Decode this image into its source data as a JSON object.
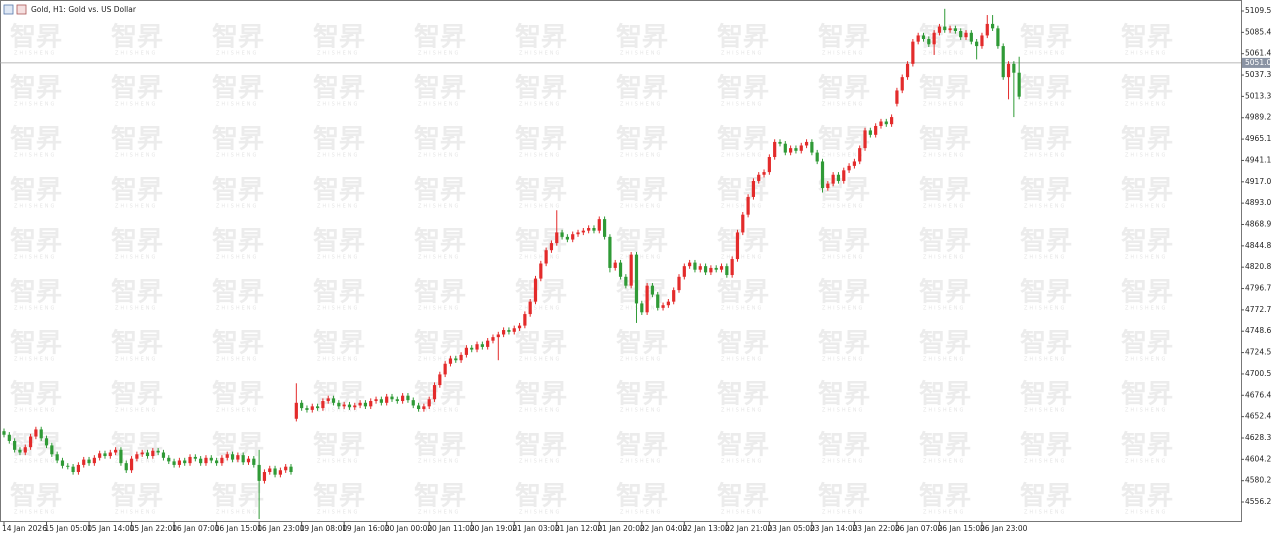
{
  "chart_data": {
    "type": "candlestick",
    "title": "Gold, H1:  Gold vs. US Dollar",
    "watermark": "智昇",
    "watermark_sub": "ZHISHENG",
    "current_price": 5051.05,
    "up_color": "#e32b2b",
    "down_color": "#2f9a36",
    "ylim": [
      4533.67,
      5120.82
    ],
    "yticks": [
      {
        "value": 5109.55,
        "label": "5109.55"
      },
      {
        "value": 5085.49,
        "label": "5085.49"
      },
      {
        "value": 5061.43,
        "label": "5061.43"
      },
      {
        "value": 5037.37,
        "label": "5037.37"
      },
      {
        "value": 5013.31,
        "label": "5013.31"
      },
      {
        "value": 4989.25,
        "label": "4989.25"
      },
      {
        "value": 4965.19,
        "label": "4965.19"
      },
      {
        "value": 4941.13,
        "label": "4941.13"
      },
      {
        "value": 4917.07,
        "label": "4917.07"
      },
      {
        "value": 4893.01,
        "label": "4893.01"
      },
      {
        "value": 4868.95,
        "label": "4868.95"
      },
      {
        "value": 4844.89,
        "label": "4844.89"
      },
      {
        "value": 4820.83,
        "label": "4820.83"
      },
      {
        "value": 4796.77,
        "label": "4796.77"
      },
      {
        "value": 4772.71,
        "label": "4772.71"
      },
      {
        "value": 4748.65,
        "label": "4748.65"
      },
      {
        "value": 4724.59,
        "label": "4724.59"
      },
      {
        "value": 4700.53,
        "label": "4700.53"
      },
      {
        "value": 4676.47,
        "label": "4676.47"
      },
      {
        "value": 4652.41,
        "label": "4652.41"
      },
      {
        "value": 4628.35,
        "label": "4628.35"
      },
      {
        "value": 4604.29,
        "label": "4604.29"
      },
      {
        "value": 4580.23,
        "label": "4580.23"
      },
      {
        "value": 4556.21,
        "label": "4556.21"
      }
    ],
    "categories": [
      "14 Jan 2026",
      null,
      null,
      null,
      null,
      null,
      null,
      null,
      "15 Jan 05:00",
      null,
      null,
      null,
      null,
      null,
      null,
      null,
      "15 Jan 14:00",
      null,
      null,
      null,
      null,
      null,
      null,
      null,
      "15 Jan 22:00",
      null,
      null,
      null,
      null,
      null,
      null,
      null,
      "16 Jan 07:00",
      null,
      null,
      null,
      null,
      null,
      null,
      null,
      "16 Jan 15:00",
      null,
      null,
      null,
      null,
      null,
      null,
      null,
      "16 Jan 23:00",
      null,
      null,
      null,
      null,
      null,
      null,
      null,
      "19 Jan 08:00",
      null,
      null,
      null,
      null,
      null,
      null,
      null,
      "19 Jan 16:00",
      null,
      null,
      null,
      null,
      null,
      null,
      null,
      "20 Jan 00:00",
      null,
      null,
      null,
      null,
      null,
      null,
      null,
      "20 Jan 11:00",
      null,
      null,
      null,
      null,
      null,
      null,
      null,
      "20 Jan 19:00",
      null,
      null,
      null,
      null,
      null,
      null,
      null,
      "21 Jan 03:00",
      null,
      null,
      null,
      null,
      null,
      null,
      null,
      "21 Jan 12:00",
      null,
      null,
      null,
      null,
      null,
      null,
      null,
      "21 Jan 20:00",
      null,
      null,
      null,
      null,
      null,
      null,
      null,
      "22 Jan 04:00",
      null,
      null,
      null,
      null,
      null,
      null,
      null,
      "22 Jan 13:00",
      null,
      null,
      null,
      null,
      null,
      null,
      null,
      "22 Jan 21:00",
      null,
      null,
      null,
      null,
      null,
      null,
      null,
      "23 Jan 05:00",
      null,
      null,
      null,
      null,
      null,
      null,
      null,
      "23 Jan 14:00",
      null,
      null,
      null,
      null,
      null,
      null,
      null,
      "23 Jan 22:00",
      null,
      null,
      null,
      null,
      null,
      null,
      null,
      "26 Jan 07:00",
      null,
      null,
      null,
      null,
      null,
      null,
      null,
      "26 Jan 15:00",
      null,
      null,
      null,
      null,
      null,
      null,
      null,
      "26 Jan 23:00",
      null,
      null,
      null,
      null,
      null,
      null,
      null
    ],
    "open": [
      4636,
      4632,
      4625,
      4615,
      4612,
      4618,
      4630,
      4638,
      4628,
      4620,
      4610,
      4603,
      4597,
      4596,
      4590,
      4598,
      4604,
      4600,
      4606,
      4611,
      4608,
      4612,
      4615,
      4600,
      4592,
      4605,
      4610,
      4612,
      4608,
      4614,
      4612,
      4606,
      4602,
      4598,
      4603,
      4600,
      4607,
      4605,
      4600,
      4606,
      4603,
      4600,
      4606,
      4610,
      4604,
      4609,
      4601,
      4605,
      4598,
      4580,
      4590,
      4594,
      4587,
      4592,
      4596,
      4650,
      4668,
      4662,
      4660,
      4664,
      4662,
      4670,
      4673,
      4668,
      4664,
      4666,
      4663,
      4665,
      4668,
      4664,
      4670,
      4672,
      4668,
      4675,
      4672,
      4670,
      4676,
      4671,
      4665,
      4661,
      4664,
      4672,
      4688,
      4700,
      4712,
      4718,
      4716,
      4722,
      4730,
      4728,
      4734,
      4731,
      4738,
      4742,
      4745,
      4750,
      4748,
      4752,
      4755,
      4768,
      4782,
      4808,
      4825,
      4840,
      4848,
      4860,
      4855,
      4852,
      4858,
      4860,
      4862,
      4865,
      4862,
      4875,
      4855,
      4820,
      4826,
      4810,
      4800,
      4835,
      4780,
      4770,
      4800,
      4790,
      4775,
      4778,
      4782,
      4795,
      4810,
      4822,
      4826,
      4818,
      4822,
      4815,
      4820,
      4818,
      4822,
      4812,
      4830,
      4860,
      4880,
      4900,
      4918,
      4925,
      4928,
      4945,
      4962,
      4960,
      4950,
      4955,
      4952,
      4958,
      4962,
      4950,
      4940,
      4910,
      4915,
      4925,
      4918,
      4930,
      4935,
      4940,
      4955,
      4975,
      4970,
      4980,
      4985,
      4982,
      5005,
      5020,
      5035,
      5050,
      5075,
      5082,
      5078,
      5072,
      5085,
      5092,
      5088,
      5090,
      5087,
      5080,
      5085,
      5075,
      5070,
      5082,
      5095,
      5090,
      5070,
      5035,
      5050,
      5040
    ],
    "high": [
      4639,
      4635,
      4628,
      4618,
      4621,
      4633,
      4641,
      4641,
      4631,
      4623,
      4613,
      4606,
      4600,
      4599,
      4601,
      4607,
      4607,
      4609,
      4614,
      4614,
      4615,
      4618,
      4618,
      4603,
      4608,
      4613,
      4615,
      4615,
      4617,
      4617,
      4615,
      4609,
      4605,
      4606,
      4606,
      4610,
      4610,
      4608,
      4609,
      4609,
      4606,
      4609,
      4613,
      4613,
      4612,
      4612,
      4608,
      4608,
      4615,
      4593,
      4597,
      4597,
      4595,
      4599,
      4599,
      4690,
      4671,
      4665,
      4667,
      4667,
      4673,
      4676,
      4676,
      4671,
      4669,
      4669,
      4668,
      4671,
      4671,
      4673,
      4675,
      4675,
      4678,
      4678,
      4675,
      4679,
      4679,
      4674,
      4668,
      4667,
      4675,
      4691,
      4703,
      4715,
      4721,
      4721,
      4725,
      4733,
      4733,
      4737,
      4737,
      4741,
      4745,
      4748,
      4753,
      4753,
      4755,
      4758,
      4771,
      4785,
      4811,
      4828,
      4843,
      4851,
      4885,
      4863,
      4858,
      4861,
      4863,
      4865,
      4868,
      4868,
      4878,
      4878,
      4858,
      4829,
      4829,
      4813,
      4838,
      4838,
      4783,
      4803,
      4803,
      4793,
      4781,
      4785,
      4798,
      4813,
      4825,
      4829,
      4829,
      4825,
      4825,
      4823,
      4823,
      4825,
      4825,
      4833,
      4863,
      4883,
      4903,
      4921,
      4928,
      4931,
      4948,
      4965,
      4965,
      4963,
      4958,
      4958,
      4961,
      4965,
      4965,
      4953,
      4943,
      4918,
      4928,
      4928,
      4933,
      4938,
      4943,
      4958,
      4978,
      4978,
      4983,
      4988,
      4988,
      4993,
      5023,
      5038,
      5053,
      5078,
      5085,
      5085,
      5081,
      5088,
      5095,
      5112,
      5093,
      5093,
      5090,
      5088,
      5088,
      5078,
      5085,
      5105,
      5105,
      5093,
      5073,
      5053,
      5053,
      5058
    ],
    "low": [
      4629,
      4622,
      4612,
      4609,
      4609,
      4615,
      4627,
      4625,
      4617,
      4607,
      4600,
      4594,
      4593,
      4587,
      4587,
      4595,
      4597,
      4597,
      4603,
      4605,
      4605,
      4609,
      4597,
      4589,
      4589,
      4602,
      4607,
      4605,
      4605,
      4609,
      4603,
      4599,
      4595,
      4595,
      4597,
      4597,
      4602,
      4597,
      4597,
      4600,
      4597,
      4597,
      4603,
      4601,
      4601,
      4598,
      4598,
      4595,
      4537,
      4577,
      4587,
      4584,
      4584,
      4589,
      4587,
      4647,
      4659,
      4657,
      4657,
      4659,
      4659,
      4667,
      4665,
      4661,
      4661,
      4660,
      4660,
      4662,
      4661,
      4661,
      4667,
      4665,
      4665,
      4669,
      4667,
      4667,
      4668,
      4662,
      4658,
      4658,
      4661,
      4669,
      4685,
      4697,
      4709,
      4713,
      4713,
      4719,
      4725,
      4725,
      4728,
      4728,
      4735,
      4716,
      4742,
      4745,
      4745,
      4749,
      4752,
      4765,
      4779,
      4805,
      4822,
      4837,
      4845,
      4852,
      4849,
      4849,
      4855,
      4857,
      4859,
      4859,
      4859,
      4852,
      4815,
      4817,
      4807,
      4797,
      4797,
      4758,
      4767,
      4767,
      4787,
      4772,
      4772,
      4775,
      4779,
      4792,
      4807,
      4819,
      4815,
      4815,
      4812,
      4812,
      4815,
      4815,
      4809,
      4809,
      4827,
      4857,
      4877,
      4897,
      4915,
      4922,
      4925,
      4942,
      4957,
      4947,
      4947,
      4949,
      4949,
      4955,
      4947,
      4937,
      4905,
      4907,
      4912,
      4915,
      4915,
      4927,
      4932,
      4937,
      4952,
      4967,
      4967,
      4977,
      4979,
      4979,
      5002,
      5017,
      5032,
      5047,
      5072,
      5075,
      5069,
      5060,
      5082,
      5085,
      5085,
      5084,
      5077,
      5077,
      5072,
      5055,
      5067,
      5079,
      5087,
      5067,
      5032,
      5010,
      4990,
      5010
    ],
    "close": [
      4632,
      4625,
      4615,
      4612,
      4618,
      4630,
      4638,
      4628,
      4620,
      4610,
      4603,
      4597,
      4596,
      4590,
      4598,
      4604,
      4600,
      4606,
      4611,
      4608,
      4612,
      4615,
      4600,
      4592,
      4605,
      4610,
      4612,
      4608,
      4614,
      4612,
      4606,
      4602,
      4598,
      4603,
      4600,
      4607,
      4605,
      4600,
      4606,
      4603,
      4600,
      4606,
      4610,
      4604,
      4609,
      4601,
      4605,
      4598,
      4580,
      4590,
      4594,
      4587,
      4592,
      4596,
      4590,
      4668,
      4662,
      4660,
      4664,
      4662,
      4670,
      4673,
      4668,
      4664,
      4666,
      4663,
      4665,
      4668,
      4664,
      4670,
      4672,
      4668,
      4675,
      4672,
      4670,
      4676,
      4671,
      4665,
      4661,
      4664,
      4672,
      4688,
      4700,
      4712,
      4718,
      4716,
      4722,
      4730,
      4728,
      4734,
      4731,
      4738,
      4742,
      4745,
      4750,
      4748,
      4752,
      4755,
      4768,
      4782,
      4808,
      4825,
      4840,
      4848,
      4860,
      4855,
      4852,
      4858,
      4860,
      4862,
      4865,
      4862,
      4875,
      4855,
      4820,
      4826,
      4810,
      4800,
      4835,
      4780,
      4770,
      4800,
      4790,
      4775,
      4778,
      4782,
      4795,
      4810,
      4822,
      4826,
      4818,
      4822,
      4815,
      4820,
      4818,
      4822,
      4812,
      4830,
      4860,
      4880,
      4900,
      4918,
      4925,
      4928,
      4945,
      4962,
      4960,
      4950,
      4955,
      4952,
      4958,
      4962,
      4950,
      4940,
      4910,
      4915,
      4925,
      4918,
      4930,
      4935,
      4940,
      4955,
      4975,
      4970,
      4980,
      4985,
      4982,
      4990,
      5020,
      5035,
      5050,
      5075,
      5082,
      5078,
      5072,
      5085,
      5092,
      5088,
      5090,
      5087,
      5080,
      5085,
      5075,
      5070,
      5082,
      5095,
      5090,
      5070,
      5035,
      5050,
      5040,
      5013
    ]
  }
}
